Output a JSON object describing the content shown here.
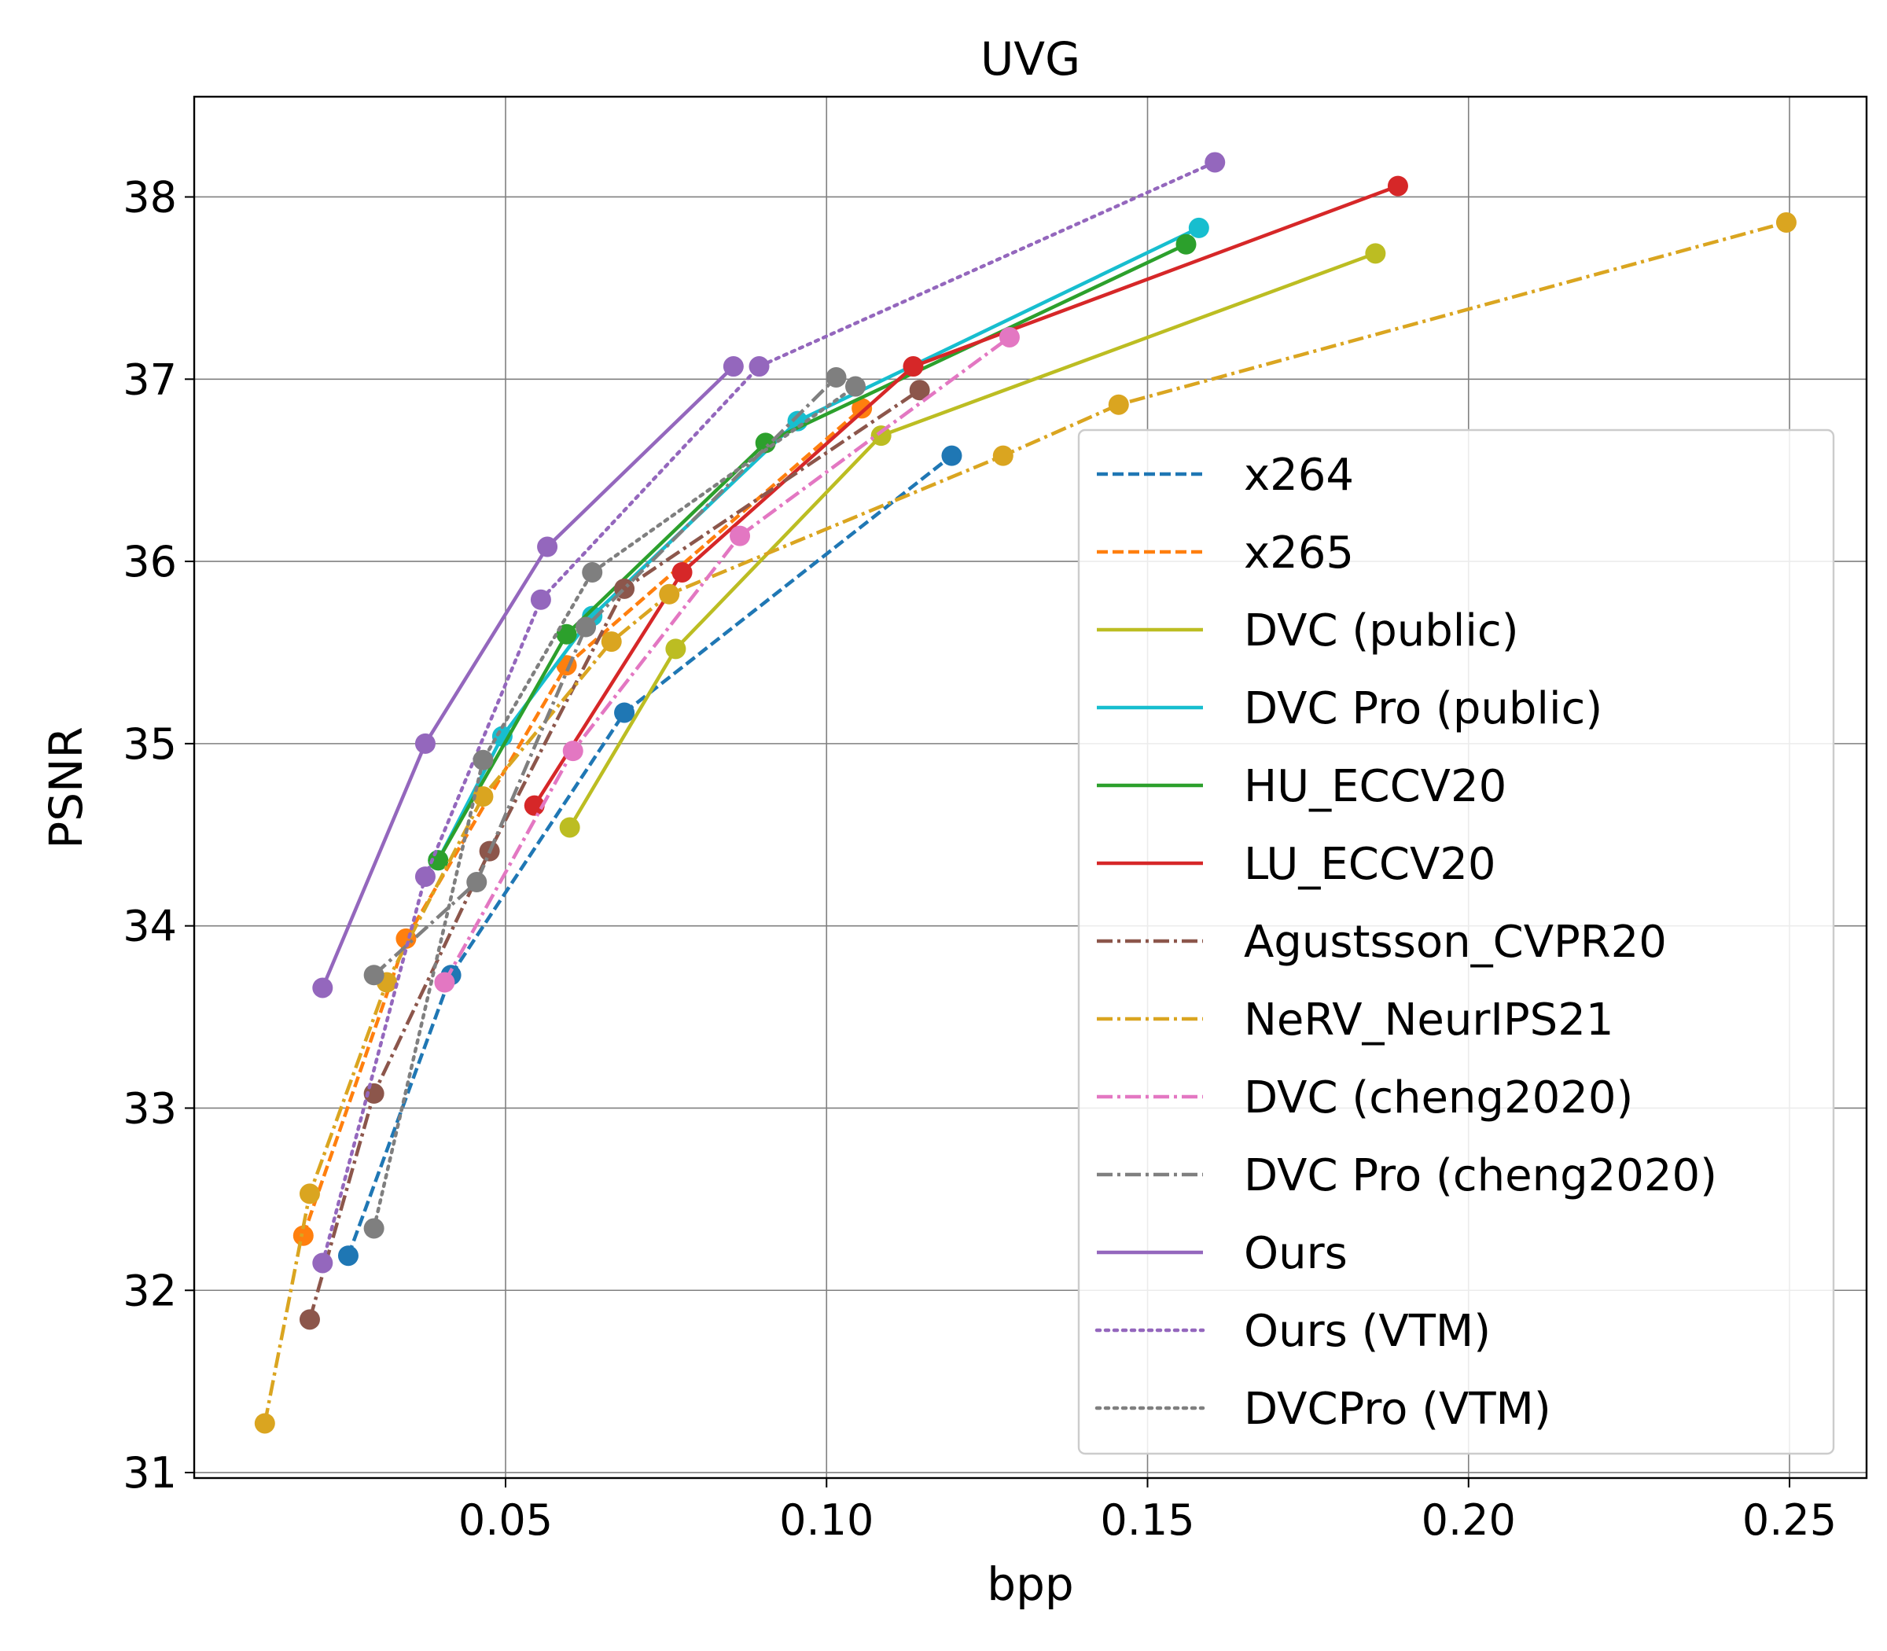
{
  "chart_data": {
    "type": "line",
    "title": "UVG",
    "xlabel": "bpp",
    "ylabel": "PSNR",
    "xlim": [
      0.0015,
      0.262
    ],
    "ylim": [
      30.97,
      38.55
    ],
    "xticks": [
      0.05,
      0.1,
      0.15,
      0.2,
      0.25
    ],
    "xtick_labels": [
      "0.05",
      "0.10",
      "0.15",
      "0.20",
      "0.25"
    ],
    "yticks": [
      31,
      32,
      33,
      34,
      35,
      36,
      37,
      38
    ],
    "ytick_labels": [
      "31",
      "32",
      "33",
      "34",
      "35",
      "36",
      "37",
      "38"
    ],
    "grid": true,
    "legend_position": "right",
    "series": [
      {
        "name": "x264",
        "color": "#1f77b4",
        "linestyle": "dashed",
        "marker": true,
        "x": [
          0.0255,
          0.0415,
          0.0685,
          0.1195
        ],
        "y": [
          32.19,
          33.73,
          35.17,
          36.58
        ]
      },
      {
        "name": "x265",
        "color": "#ff7f0e",
        "linestyle": "dashed",
        "marker": true,
        "x": [
          0.0185,
          0.0345,
          0.0595,
          0.1055
        ],
        "y": [
          32.3,
          33.93,
          35.43,
          36.84
        ]
      },
      {
        "name": "DVC (public)",
        "color": "#bcbd22",
        "linestyle": "solid",
        "marker": true,
        "x": [
          0.06,
          0.0765,
          0.1085,
          0.1855
        ],
        "y": [
          34.54,
          35.52,
          36.69,
          37.69
        ]
      },
      {
        "name": "DVC Pro (public)",
        "color": "#17becf",
        "linestyle": "solid",
        "marker": true,
        "x": [
          0.0395,
          0.0495,
          0.0635,
          0.0955,
          0.158
        ],
        "y": [
          34.36,
          35.04,
          35.7,
          36.77,
          37.83
        ]
      },
      {
        "name": "HU_ECCV20",
        "color": "#2ca02c",
        "linestyle": "solid",
        "marker": true,
        "x": [
          0.0395,
          0.0595,
          0.0905,
          0.156
        ],
        "y": [
          34.36,
          35.6,
          36.65,
          37.74
        ]
      },
      {
        "name": "LU_ECCV20",
        "color": "#d62728",
        "linestyle": "solid",
        "marker": true,
        "x": [
          0.0545,
          0.0775,
          0.1135,
          0.189
        ],
        "y": [
          34.66,
          35.94,
          37.07,
          38.06
        ]
      },
      {
        "name": "Agustsson_CVPR20",
        "color": "#8c564b",
        "linestyle": "dashdot",
        "marker": true,
        "x": [
          0.0195,
          0.0295,
          0.0475,
          0.0685,
          0.1145
        ],
        "y": [
          31.84,
          33.08,
          34.41,
          35.85,
          36.94
        ]
      },
      {
        "name": "NeRV_NeurIPS21",
        "color": "#daa520",
        "linestyle": "dashdot",
        "marker": true,
        "x": [
          0.0125,
          0.0195,
          0.0315,
          0.0465,
          0.0665,
          0.0755,
          0.1275,
          0.1455,
          0.2495
        ],
        "y": [
          31.27,
          32.53,
          33.69,
          34.71,
          35.56,
          35.82,
          36.58,
          36.86,
          37.86
        ]
      },
      {
        "name": "DVC (cheng2020)",
        "color": "#e377c2",
        "linestyle": "dashdot",
        "marker": true,
        "x": [
          0.0405,
          0.0605,
          0.0865,
          0.1285
        ],
        "y": [
          33.69,
          34.96,
          36.14,
          37.23
        ]
      },
      {
        "name": "DVC Pro (cheng2020)",
        "color": "#7f7f7f",
        "linestyle": "dashdot",
        "marker": true,
        "x": [
          0.0295,
          0.0455,
          0.0625,
          0.1015
        ],
        "y": [
          33.73,
          34.24,
          35.64,
          37.01
        ]
      },
      {
        "name": "Ours",
        "color": "#9467bd",
        "linestyle": "solid",
        "marker": true,
        "x": [
          0.0215,
          0.0375,
          0.0565,
          0.0855
        ],
        "y": [
          33.66,
          35.0,
          36.08,
          37.07
        ]
      },
      {
        "name": "Ours (VTM)",
        "color": "#9467bd",
        "linestyle": "dotted",
        "marker": true,
        "x": [
          0.0215,
          0.0375,
          0.0555,
          0.0895,
          0.1605
        ],
        "y": [
          32.15,
          34.27,
          35.79,
          37.07,
          38.19
        ]
      },
      {
        "name": "DVCPro (VTM)",
        "color": "#7f7f7f",
        "linestyle": "dotted",
        "marker": true,
        "x": [
          0.0295,
          0.0465,
          0.0635,
          0.1045
        ],
        "y": [
          32.34,
          34.91,
          35.94,
          36.96
        ]
      }
    ]
  }
}
